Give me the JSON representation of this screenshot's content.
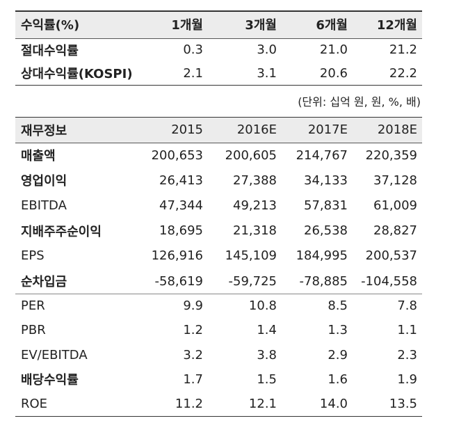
{
  "returns": {
    "header": [
      "수익률(%)",
      "1개월",
      "3개월",
      "6개월",
      "12개월"
    ],
    "rows": [
      [
        "절대수익률",
        "0.3",
        "3.0",
        "21.0",
        "21.2"
      ],
      [
        "상대수익률(KOSPI)",
        "2.1",
        "3.1",
        "20.6",
        "22.2"
      ]
    ]
  },
  "unit_note": "(단위: 십억 원, 원, %, 배)",
  "financials": {
    "header": [
      "재무정보",
      "2015",
      "2016E",
      "2017E",
      "2018E"
    ],
    "groups": [
      [
        [
          "매출액",
          "200,653",
          "200,605",
          "214,767",
          "220,359"
        ],
        [
          "영업이익",
          "26,413",
          "27,388",
          "34,133",
          "37,128"
        ],
        [
          "EBITDA",
          "47,344",
          "49,213",
          "57,831",
          "61,009"
        ],
        [
          "지배주주순이익",
          "18,695",
          "21,318",
          "26,538",
          "28,827"
        ],
        [
          "EPS",
          "126,916",
          "145,109",
          "184,995",
          "200,537"
        ],
        [
          "순차입금",
          "-58,619",
          "-59,725",
          "-78,885",
          "-104,558"
        ]
      ],
      [
        [
          "PER",
          "9.9",
          "10.8",
          "8.5",
          "7.8"
        ],
        [
          "PBR",
          "1.2",
          "1.4",
          "1.3",
          "1.1"
        ],
        [
          "EV/EBITDA",
          "3.2",
          "3.8",
          "2.9",
          "2.3"
        ],
        [
          "배당수익률",
          "1.7",
          "1.5",
          "1.6",
          "1.9"
        ],
        [
          "ROE",
          "11.2",
          "12.1",
          "14.0",
          "13.5"
        ]
      ]
    ]
  }
}
